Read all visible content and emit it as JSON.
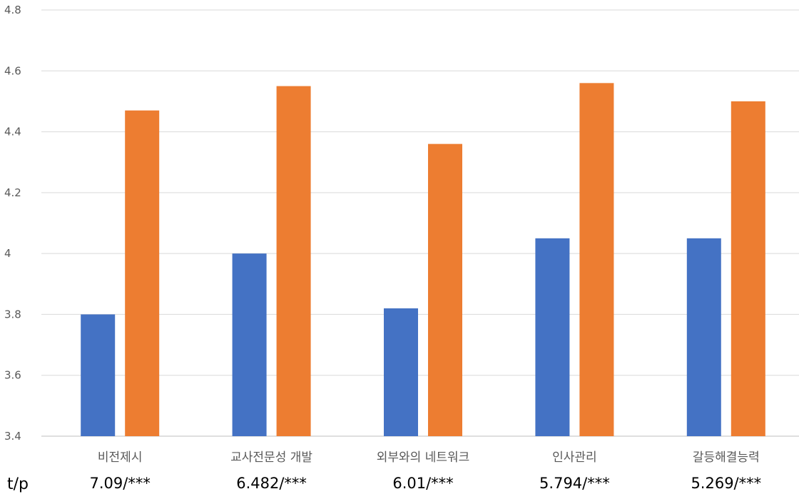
{
  "chart_data": {
    "type": "bar",
    "categories": [
      "비전제시",
      "교사전문성 개발",
      "외부와의 네트워크",
      "인사관리",
      "갈등해결능력"
    ],
    "series": [
      {
        "values": [
          3.8,
          4.0,
          3.82,
          4.05,
          4.05
        ],
        "color": "#4472C4"
      },
      {
        "values": [
          4.47,
          4.55,
          4.36,
          4.56,
          4.5
        ],
        "color": "#ED7D31"
      }
    ],
    "ylim": [
      3.4,
      4.8
    ],
    "yticks": [
      "3.4",
      "3.6",
      "3.8",
      "4",
      "4.2",
      "4.4",
      "4.6",
      "4.8"
    ],
    "grid": true,
    "stats_row": {
      "label": "t/p",
      "values": [
        "7.09/***",
        "6.482/***",
        "6.01/***",
        "5.794/***",
        "5.269/***"
      ]
    }
  }
}
